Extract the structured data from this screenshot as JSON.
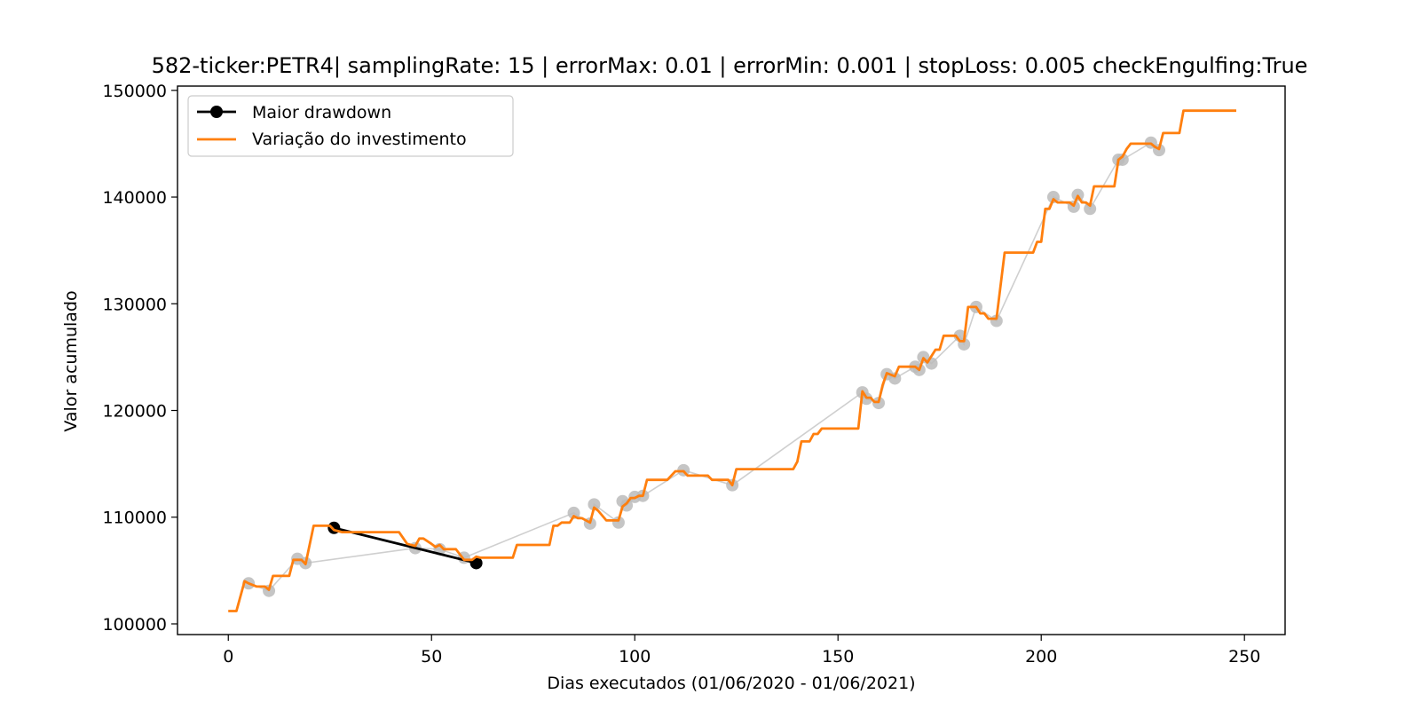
{
  "chart_data": {
    "type": "line",
    "title": "582-ticker:PETR4| samplingRate: 15 | errorMax: 0.01 | errorMin: 0.001 | stopLoss: 0.005 checkEngulfing:True",
    "xlabel": "Dias executados (01/06/2020 - 01/06/2021)",
    "ylabel": "Valor acumulado",
    "xlim": [
      -12.5,
      260
    ],
    "ylim": [
      99000,
      150400
    ],
    "xticks": [
      0,
      50,
      100,
      150,
      200,
      250
    ],
    "yticks": [
      100000,
      110000,
      120000,
      130000,
      140000,
      150000
    ],
    "grid": false,
    "legend_position": "top-left",
    "series": [
      {
        "name": "Maior drawdown",
        "color": "#000000",
        "marker": "circle",
        "x": [
          26,
          61
        ],
        "y": [
          109000,
          105700
        ]
      },
      {
        "name": "Variação do investimento",
        "color": "#ff7f0e",
        "step_points": [
          [
            0,
            101200
          ],
          [
            2,
            101200
          ],
          [
            4,
            104000
          ],
          [
            5,
            103800
          ],
          [
            7,
            103500
          ],
          [
            9,
            103500
          ],
          [
            10,
            103200
          ],
          [
            11,
            104500
          ],
          [
            15,
            104500
          ],
          [
            16,
            106000
          ],
          [
            18,
            106000
          ],
          [
            19,
            105600
          ],
          [
            21,
            109200
          ],
          [
            25,
            109200
          ],
          [
            26,
            108800
          ],
          [
            27,
            108700
          ],
          [
            28,
            108600
          ],
          [
            42,
            108600
          ],
          [
            44,
            107500
          ],
          [
            46,
            107300
          ],
          [
            47,
            108000
          ],
          [
            48,
            108000
          ],
          [
            50,
            107500
          ],
          [
            51,
            107200
          ],
          [
            52,
            107400
          ],
          [
            53,
            107000
          ],
          [
            56,
            107000
          ],
          [
            57,
            106500
          ],
          [
            58,
            106000
          ],
          [
            60,
            106000
          ],
          [
            61,
            106300
          ],
          [
            62,
            106200
          ],
          [
            70,
            106200
          ],
          [
            71,
            107400
          ],
          [
            79,
            107400
          ],
          [
            80,
            109200
          ],
          [
            81,
            109200
          ],
          [
            82,
            109500
          ],
          [
            84,
            109500
          ],
          [
            85,
            110100
          ],
          [
            86,
            109900
          ],
          [
            87,
            109900
          ],
          [
            89,
            109500
          ],
          [
            90,
            110900
          ],
          [
            91,
            110600
          ],
          [
            93,
            109700
          ],
          [
            96,
            109700
          ],
          [
            97,
            111000
          ],
          [
            98,
            111300
          ],
          [
            99,
            111800
          ],
          [
            100,
            111800
          ],
          [
            101,
            112000
          ],
          [
            102,
            112000
          ],
          [
            103,
            113500
          ],
          [
            108,
            113500
          ],
          [
            110,
            114300
          ],
          [
            112,
            114300
          ],
          [
            113,
            113900
          ],
          [
            118,
            113900
          ],
          [
            119,
            113500
          ],
          [
            123,
            113500
          ],
          [
            124,
            113000
          ],
          [
            125,
            114500
          ],
          [
            139,
            114500
          ],
          [
            140,
            115200
          ],
          [
            141,
            117100
          ],
          [
            143,
            117100
          ],
          [
            144,
            117800
          ],
          [
            145,
            117800
          ],
          [
            146,
            118300
          ],
          [
            155,
            118300
          ],
          [
            156,
            121800
          ],
          [
            157,
            121200
          ],
          [
            158,
            121200
          ],
          [
            159,
            120800
          ],
          [
            160,
            120800
          ],
          [
            161,
            122400
          ],
          [
            162,
            123500
          ],
          [
            164,
            123200
          ],
          [
            165,
            124100
          ],
          [
            169,
            124100
          ],
          [
            170,
            123800
          ],
          [
            171,
            124900
          ],
          [
            172,
            124500
          ],
          [
            174,
            125700
          ],
          [
            175,
            125700
          ],
          [
            176,
            127000
          ],
          [
            179,
            127000
          ],
          [
            180,
            126500
          ],
          [
            181,
            126500
          ],
          [
            182,
            129700
          ],
          [
            184,
            129700
          ],
          [
            185,
            129100
          ],
          [
            186,
            129100
          ],
          [
            187,
            128600
          ],
          [
            189,
            128600
          ],
          [
            191,
            134800
          ],
          [
            198,
            134800
          ],
          [
            199,
            135800
          ],
          [
            200,
            135800
          ],
          [
            201,
            138900
          ],
          [
            202,
            138900
          ],
          [
            203,
            139800
          ],
          [
            204,
            139500
          ],
          [
            207,
            139500
          ],
          [
            208,
            139200
          ],
          [
            209,
            140100
          ],
          [
            210,
            139500
          ],
          [
            211,
            139500
          ],
          [
            212,
            139200
          ],
          [
            213,
            141000
          ],
          [
            218,
            141000
          ],
          [
            219,
            143500
          ],
          [
            220,
            143800
          ],
          [
            221,
            144500
          ],
          [
            222,
            145000
          ],
          [
            227,
            145000
          ],
          [
            228,
            144700
          ],
          [
            229,
            144500
          ],
          [
            230,
            146000
          ],
          [
            234,
            146000
          ],
          [
            235,
            148100
          ],
          [
            248,
            148100
          ]
        ]
      }
    ],
    "drawdown_markers": {
      "color": "#bbbbbb",
      "points": [
        [
          5,
          103800
        ],
        [
          10,
          103100
        ],
        [
          17,
          106100
        ],
        [
          19,
          105700
        ],
        [
          46,
          107100
        ],
        [
          52,
          107000
        ],
        [
          58,
          106200
        ],
        [
          85,
          110400
        ],
        [
          89,
          109400
        ],
        [
          90,
          111200
        ],
        [
          96,
          109500
        ],
        [
          97,
          111500
        ],
        [
          98,
          111100
        ],
        [
          100,
          111900
        ],
        [
          102,
          112000
        ],
        [
          112,
          114400
        ],
        [
          124,
          113000
        ],
        [
          156,
          121700
        ],
        [
          157,
          121100
        ],
        [
          160,
          120700
        ],
        [
          162,
          123400
        ],
        [
          164,
          123000
        ],
        [
          169,
          124100
        ],
        [
          170,
          123800
        ],
        [
          171,
          125000
        ],
        [
          173,
          124400
        ],
        [
          180,
          127000
        ],
        [
          181,
          126200
        ],
        [
          184,
          129700
        ],
        [
          189,
          128400
        ],
        [
          203,
          140000
        ],
        [
          208,
          139100
        ],
        [
          209,
          140200
        ],
        [
          212,
          138900
        ],
        [
          219,
          143500
        ],
        [
          220,
          143500
        ],
        [
          227,
          145100
        ],
        [
          229,
          144400
        ]
      ]
    }
  }
}
